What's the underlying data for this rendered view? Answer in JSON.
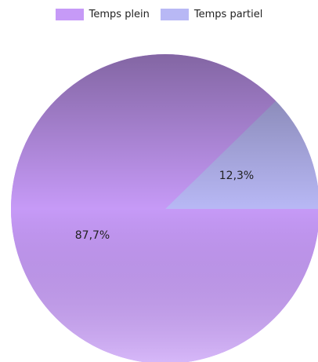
{
  "chart_data": {
    "type": "pie",
    "series": [
      {
        "name": "Temps plein",
        "value": 87.7,
        "label": "87,7%",
        "color": "#c69af7"
      },
      {
        "name": "Temps partiel",
        "value": 12.3,
        "label": "12,3%",
        "color": "#b8b8f5"
      }
    ],
    "start_angle_deg": 0,
    "direction": "counterclockwise",
    "legend_position": "top",
    "rim_color": "#c892f6",
    "shading": "darker at top, lighter at bottom"
  },
  "legend": {
    "items": [
      {
        "label": "Temps plein",
        "color": "#c69af7"
      },
      {
        "label": "Temps partiel",
        "color": "#b8b8f5"
      }
    ]
  }
}
